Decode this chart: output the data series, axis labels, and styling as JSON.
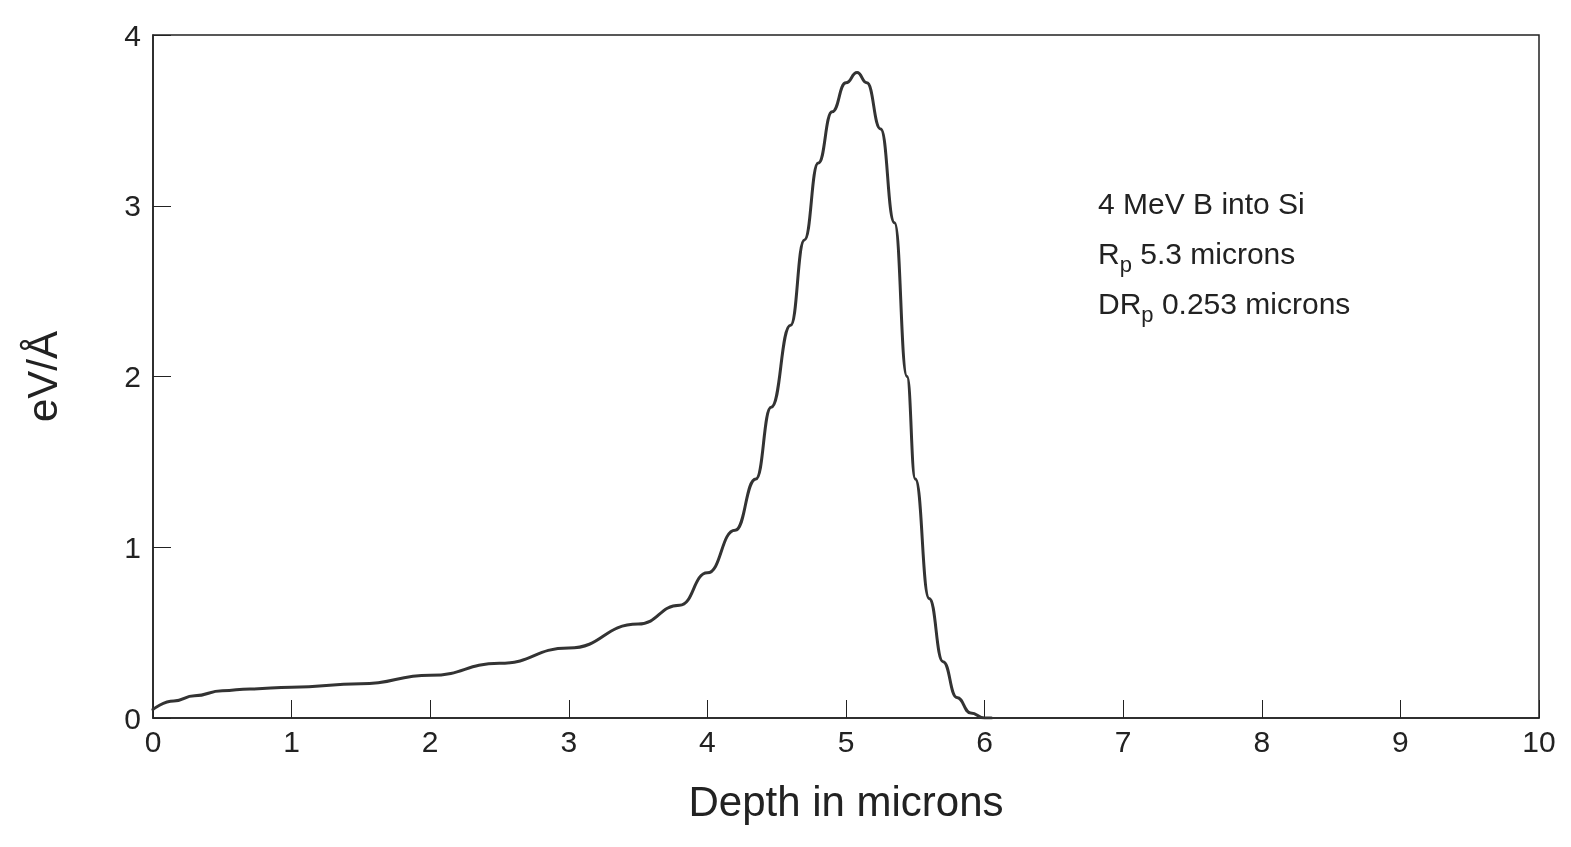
{
  "chart_data": {
    "type": "line",
    "xlabel": "Depth in microns",
    "ylabel": "eV/Å",
    "annotations": [
      "4 MeV B into Si",
      "R$_{p}$ 5.3 microns",
      "DR$_{p}$ 0.253 microns"
    ],
    "xlim": [
      0,
      10
    ],
    "xticks": [
      0,
      1,
      2,
      3,
      4,
      5,
      6,
      7,
      8,
      9,
      10
    ],
    "ylim": [
      0,
      4
    ],
    "yticks": [
      0,
      1,
      2,
      3,
      4
    ],
    "grid": false,
    "marker": "none",
    "line_style": "solid",
    "series": [
      {
        "color": "#333333",
        "x": [
          0,
          0.15,
          0.3,
          0.5,
          0.7,
          1,
          1.5,
          2,
          2.5,
          3,
          3.5,
          3.8,
          4,
          4.2,
          4.35,
          4.46,
          4.6,
          4.7,
          4.8,
          4.9,
          5,
          5.08,
          5.15,
          5.25,
          5.35,
          5.44,
          5.5,
          5.6,
          5.7,
          5.8,
          5.9,
          6,
          6.05
        ],
        "values": [
          0.05,
          0.1,
          0.13,
          0.16,
          0.17,
          0.18,
          0.2,
          0.25,
          0.32,
          0.41,
          0.55,
          0.66,
          0.85,
          1.1,
          1.4,
          1.82,
          2.3,
          2.8,
          3.25,
          3.55,
          3.72,
          3.78,
          3.72,
          3.45,
          2.9,
          2.0,
          1.4,
          0.7,
          0.33,
          0.12,
          0.03,
          0,
          0
        ]
      }
    ]
  }
}
